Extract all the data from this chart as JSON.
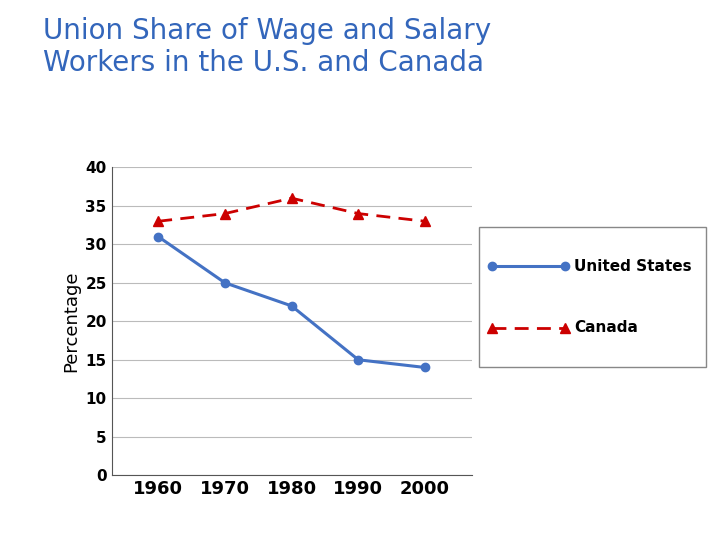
{
  "title_line1": "Union Share of Wage and Salary",
  "title_line2": "Workers in the U.S. and Canada",
  "title_color": "#3366BB",
  "title_fontsize": 20,
  "ylabel": "Percentage",
  "ylabel_fontsize": 13,
  "background_color": "#ffffff",
  "header_bar_color": "#D4A800",
  "years": [
    1960,
    1970,
    1980,
    1990,
    2000
  ],
  "us_values": [
    31,
    25,
    22,
    15,
    14
  ],
  "canada_values": [
    33,
    34,
    36,
    34,
    33
  ],
  "us_color": "#4472C4",
  "canada_color": "#CC0000",
  "us_label": "United States",
  "canada_label": "Canada",
  "ylim": [
    0,
    40
  ],
  "yticks": [
    0,
    5,
    10,
    15,
    20,
    25,
    30,
    35,
    40
  ],
  "xtick_fontsize": 13,
  "ytick_fontsize": 11,
  "grid_color": "#bbbbbb",
  "plot_bg_color": "#ffffff",
  "legend_fontsize": 11
}
